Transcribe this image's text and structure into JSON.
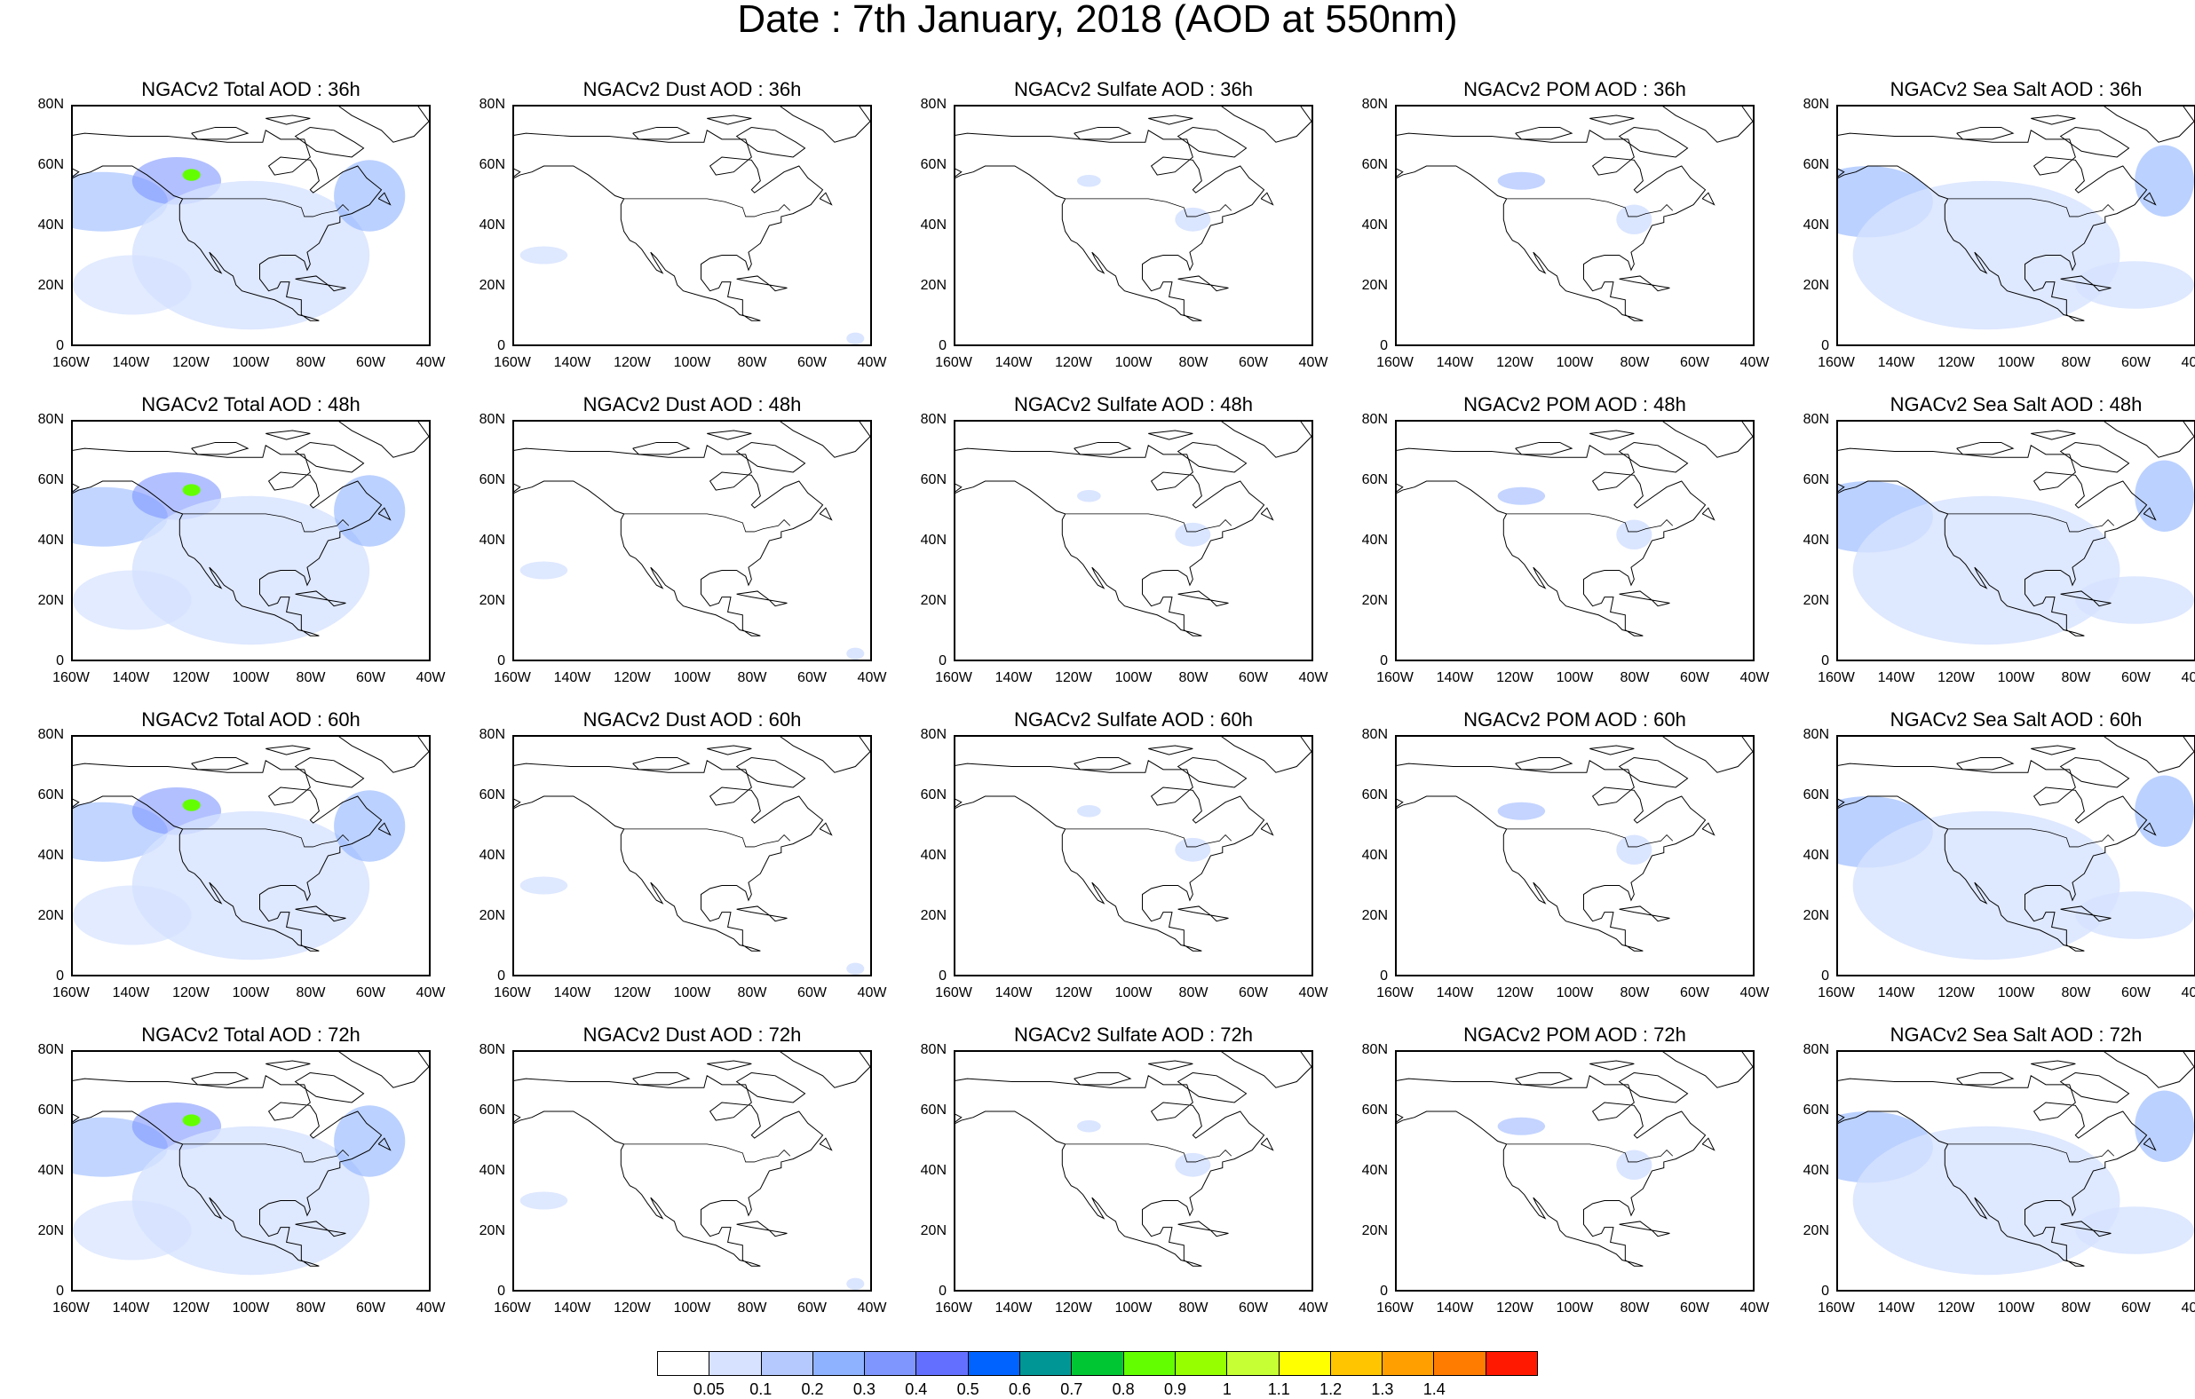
{
  "title": "Date : 7th January, 2018 (AOD at 550nm)",
  "panels": [
    {
      "title": "NGACv2 Total AOD : 36h",
      "species": "total"
    },
    {
      "title": "NGACv2 Dust AOD : 36h",
      "species": "dust"
    },
    {
      "title": "NGACv2 Sulfate AOD : 36h",
      "species": "sulfate"
    },
    {
      "title": "NGACv2 POM AOD : 36h",
      "species": "pom"
    },
    {
      "title": "NGACv2 Sea Salt AOD : 36h",
      "species": "seasalt"
    },
    {
      "title": "NGACv2 Total AOD : 48h",
      "species": "total"
    },
    {
      "title": "NGACv2 Dust AOD : 48h",
      "species": "dust"
    },
    {
      "title": "NGACv2 Sulfate AOD : 48h",
      "species": "sulfate"
    },
    {
      "title": "NGACv2 POM AOD : 48h",
      "species": "pom"
    },
    {
      "title": "NGACv2 Sea Salt AOD : 48h",
      "species": "seasalt"
    },
    {
      "title": "NGACv2 Total AOD : 60h",
      "species": "total"
    },
    {
      "title": "NGACv2 Dust AOD : 60h",
      "species": "dust"
    },
    {
      "title": "NGACv2 Sulfate AOD : 60h",
      "species": "sulfate"
    },
    {
      "title": "NGACv2 POM AOD : 60h",
      "species": "pom"
    },
    {
      "title": "NGACv2 Sea Salt AOD : 60h",
      "species": "seasalt"
    },
    {
      "title": "NGACv2 Total AOD : 72h",
      "species": "total"
    },
    {
      "title": "NGACv2 Dust AOD : 72h",
      "species": "dust"
    },
    {
      "title": "NGACv2 Sulfate AOD : 72h",
      "species": "sulfate"
    },
    {
      "title": "NGACv2 POM AOD : 72h",
      "species": "pom"
    },
    {
      "title": "NGACv2 Sea Salt  AOD : 72h",
      "species": "seasalt"
    }
  ],
  "lat_labels": [
    "80N",
    "60N",
    "40N",
    "20N",
    "0"
  ],
  "lon_labels": [
    "160W",
    "140W",
    "120W",
    "100W",
    "80W",
    "60W",
    "40W"
  ],
  "colorbar": {
    "labels": [
      "0.05",
      "0.1",
      "0.2",
      "0.3",
      "0.4",
      "0.5",
      "0.6",
      "0.7",
      "0.8",
      "0.9",
      "1",
      "1.1",
      "1.2",
      "1.3",
      "1.4"
    ],
    "colors": [
      "#ffffff",
      "#d6e2ff",
      "#b5c9ff",
      "#8eb2ff",
      "#7f96ff",
      "#6370ff",
      "#0063ff",
      "#009696",
      "#00c633",
      "#63ff00",
      "#96ff00",
      "#c6ff33",
      "#ffff00",
      "#ffc600",
      "#ffa000",
      "#ff7c00",
      "#ff1900"
    ]
  }
}
